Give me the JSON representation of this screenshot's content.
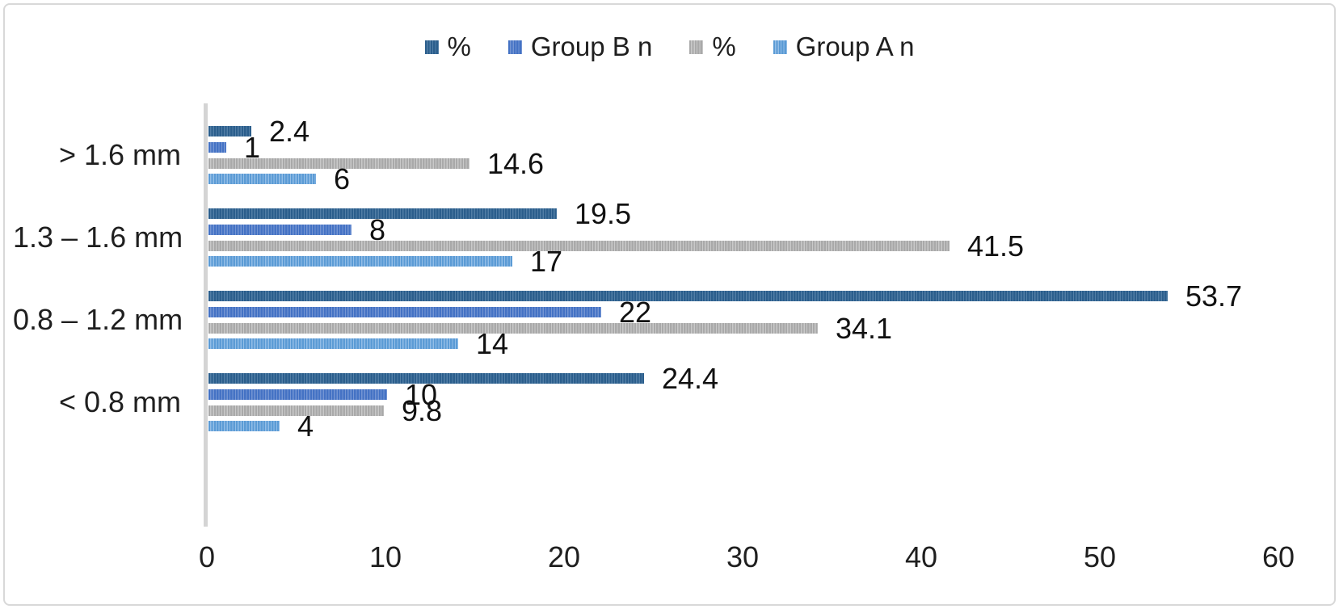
{
  "frame": {
    "background_color": "#ffffff",
    "border_color": "#d8d8d8"
  },
  "axis": {
    "line_color": "#d4d4d4"
  },
  "chart_data": {
    "type": "bar",
    "orientation": "horizontal",
    "title": "",
    "xlabel": "",
    "ylabel": "",
    "grid": false,
    "legend_position": "top",
    "categories": [
      "> 1.6 mm",
      "1.3 – 1.6 mm",
      "0.8 – 1.2 mm",
      "< 0.8 mm"
    ],
    "series": [
      {
        "name": "%",
        "base_color": "#2b5e8c",
        "stripe_color": "#527ea6",
        "values": [
          2.4,
          19.5,
          53.7,
          24.4
        ],
        "labels": [
          "2.4",
          "19.5",
          "53.7",
          "24.4"
        ]
      },
      {
        "name": "Group B n",
        "base_color": "#4472c4",
        "stripe_color": "#7495d3",
        "values": [
          1,
          8,
          22,
          10
        ],
        "labels": [
          "1",
          "8",
          "22",
          "10"
        ]
      },
      {
        "name": "%",
        "base_color": "#a9a9a9",
        "stripe_color": "#c9c9c9",
        "values": [
          14.6,
          41.5,
          34.1,
          9.8
        ],
        "labels": [
          "14.6",
          "41.5",
          "34.1",
          "9.8"
        ]
      },
      {
        "name": "Group A n",
        "base_color": "#5b9bd5",
        "stripe_color": "#93bee7",
        "values": [
          6,
          17,
          14,
          4
        ],
        "labels": [
          "6",
          "17",
          "14",
          "4"
        ]
      }
    ],
    "xlim": [
      0,
      60
    ],
    "x_ticks": [
      "0",
      "10",
      "20",
      "30",
      "40",
      "50",
      "60"
    ],
    "x_tick_values": [
      0,
      10,
      20,
      30,
      40,
      50,
      60
    ]
  }
}
